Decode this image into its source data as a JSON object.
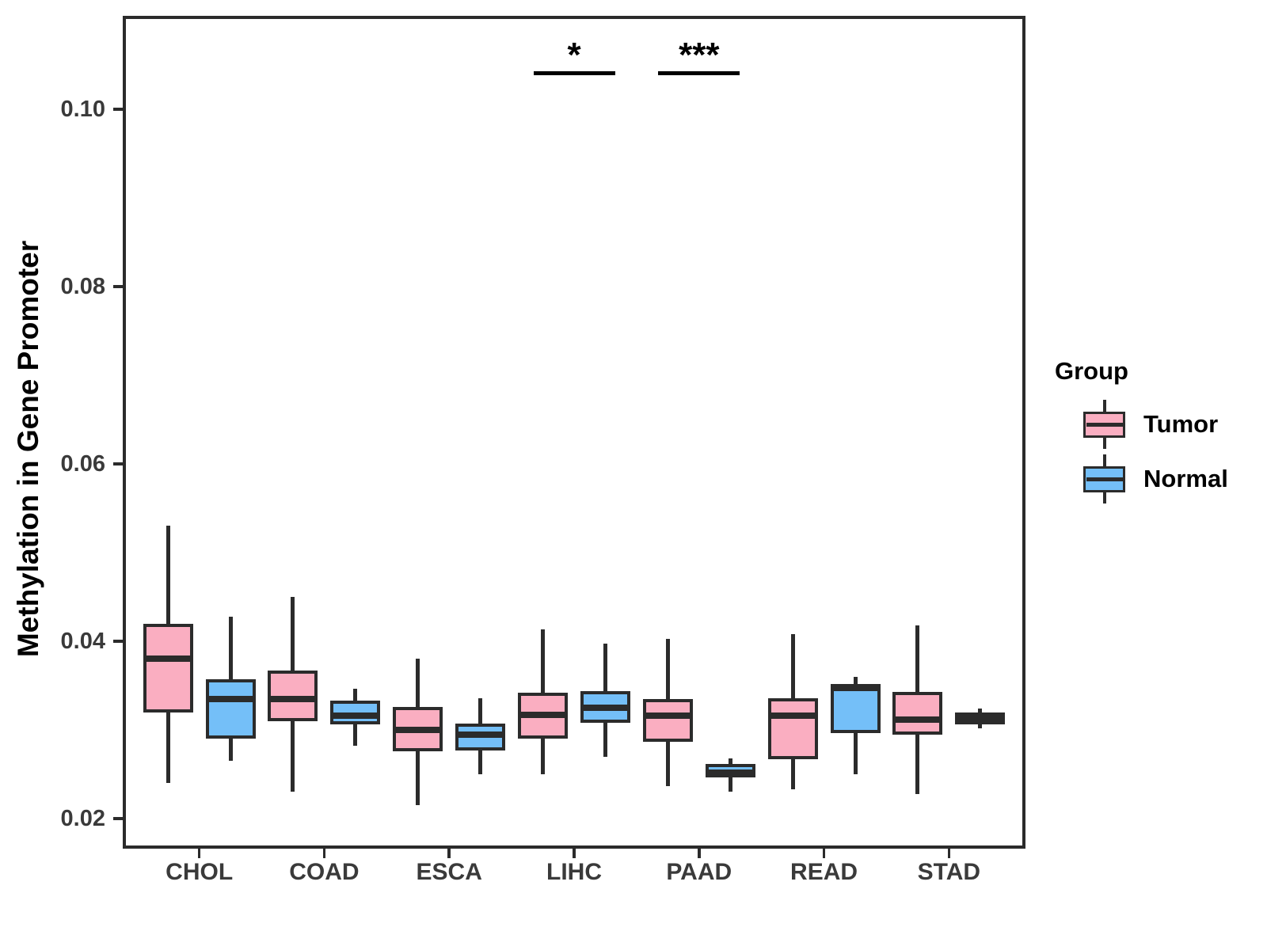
{
  "figure": {
    "background": "#FFFFFF"
  },
  "chart_data": {
    "type": "boxplot",
    "title": "",
    "xlabel": "",
    "ylabel": "Methylation in Gene Promoter",
    "legend_title": "Group",
    "legend_position": "right",
    "grid": false,
    "ylim": [
      0.0168,
      0.1103
    ],
    "y_ticks": [
      0.02,
      0.04,
      0.06,
      0.08,
      0.1
    ],
    "y_tick_labels": [
      "0.02",
      "0.04",
      "0.06",
      "0.08",
      "0.10"
    ],
    "categories": [
      "CHOL",
      "COAD",
      "ESCA",
      "LIHC",
      "PAAD",
      "READ",
      "STAD"
    ],
    "series": [
      {
        "name": "Tumor",
        "fill": "#FAAEC1",
        "boxes": [
          {
            "whisker_low": 0.024,
            "q1": 0.032,
            "median": 0.038,
            "q3": 0.042,
            "whisker_high": 0.053
          },
          {
            "whisker_low": 0.023,
            "q1": 0.031,
            "median": 0.0335,
            "q3": 0.0367,
            "whisker_high": 0.045
          },
          {
            "whisker_low": 0.0215,
            "q1": 0.0276,
            "median": 0.03,
            "q3": 0.0326,
            "whisker_high": 0.038
          },
          {
            "whisker_low": 0.025,
            "q1": 0.029,
            "median": 0.0317,
            "q3": 0.0342,
            "whisker_high": 0.0413
          },
          {
            "whisker_low": 0.0237,
            "q1": 0.0287,
            "median": 0.0316,
            "q3": 0.0335,
            "whisker_high": 0.0403
          },
          {
            "whisker_low": 0.0233,
            "q1": 0.0267,
            "median": 0.0316,
            "q3": 0.0336,
            "whisker_high": 0.0408
          },
          {
            "whisker_low": 0.0228,
            "q1": 0.0295,
            "median": 0.0312,
            "q3": 0.0343,
            "whisker_high": 0.0418
          }
        ]
      },
      {
        "name": "Normal",
        "fill": "#74BFF8",
        "boxes": [
          {
            "whisker_low": 0.0265,
            "q1": 0.029,
            "median": 0.0335,
            "q3": 0.0357,
            "whisker_high": 0.0428
          },
          {
            "whisker_low": 0.0282,
            "q1": 0.0306,
            "median": 0.0316,
            "q3": 0.0333,
            "whisker_high": 0.0346
          },
          {
            "whisker_low": 0.025,
            "q1": 0.0277,
            "median": 0.0295,
            "q3": 0.0307,
            "whisker_high": 0.0336
          },
          {
            "whisker_low": 0.027,
            "q1": 0.0308,
            "median": 0.0325,
            "q3": 0.0344,
            "whisker_high": 0.0397
          },
          {
            "whisker_low": 0.023,
            "q1": 0.0246,
            "median": 0.0252,
            "q3": 0.0262,
            "whisker_high": 0.0268
          },
          {
            "whisker_low": 0.025,
            "q1": 0.0296,
            "median": 0.0347,
            "q3": 0.0352,
            "whisker_high": 0.036
          },
          {
            "whisker_low": 0.0302,
            "q1": 0.0306,
            "median": 0.0313,
            "q3": 0.032,
            "whisker_high": 0.0324
          }
        ]
      }
    ],
    "significance": [
      {
        "category": "LIHC",
        "label": "*"
      },
      {
        "category": "PAAD",
        "label": "***"
      }
    ],
    "style": {
      "tumor_fill": "#FAAEC1",
      "normal_fill": "#74BFF8",
      "stroke": "#2B2B2B",
      "tick_text": "#3A3A3A",
      "title_text": "#000000"
    }
  }
}
